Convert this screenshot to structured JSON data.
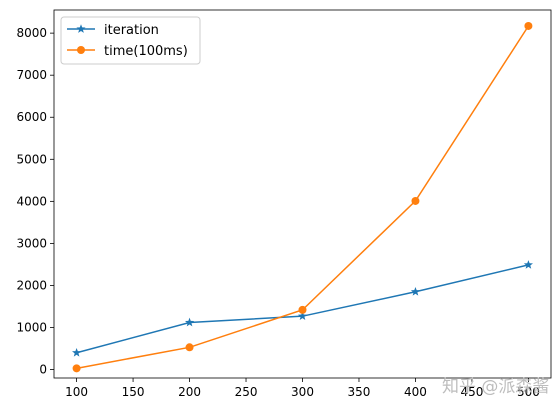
{
  "chart_data": {
    "type": "line",
    "title": "",
    "xlabel": "",
    "ylabel": "",
    "x": [
      100,
      200,
      300,
      400,
      500
    ],
    "xlim": [
      80,
      520
    ],
    "ylim": [
      -200,
      8550
    ],
    "xticks": [
      100,
      150,
      200,
      250,
      300,
      350,
      400,
      450,
      500
    ],
    "yticks": [
      0,
      1000,
      2000,
      3000,
      4000,
      5000,
      6000,
      7000,
      8000
    ],
    "xtick_labels": [
      "100",
      "150",
      "200",
      "250",
      "300",
      "350",
      "400",
      "450",
      "500"
    ],
    "ytick_labels": [
      "0",
      "1000",
      "2000",
      "3000",
      "4000",
      "5000",
      "6000",
      "7000",
      "8000"
    ],
    "grid": false,
    "legend_position": "top-left",
    "series": [
      {
        "name": "iteration",
        "values": [
          400,
          1120,
          1270,
          1850,
          2490
        ],
        "color": "#1f77b4",
        "marker": "star"
      },
      {
        "name": "time(100ms)",
        "values": [
          30,
          530,
          1420,
          4010,
          8170
        ],
        "color": "#ff7f0e",
        "marker": "circle"
      }
    ]
  },
  "watermark": "知乎 @派森酱"
}
